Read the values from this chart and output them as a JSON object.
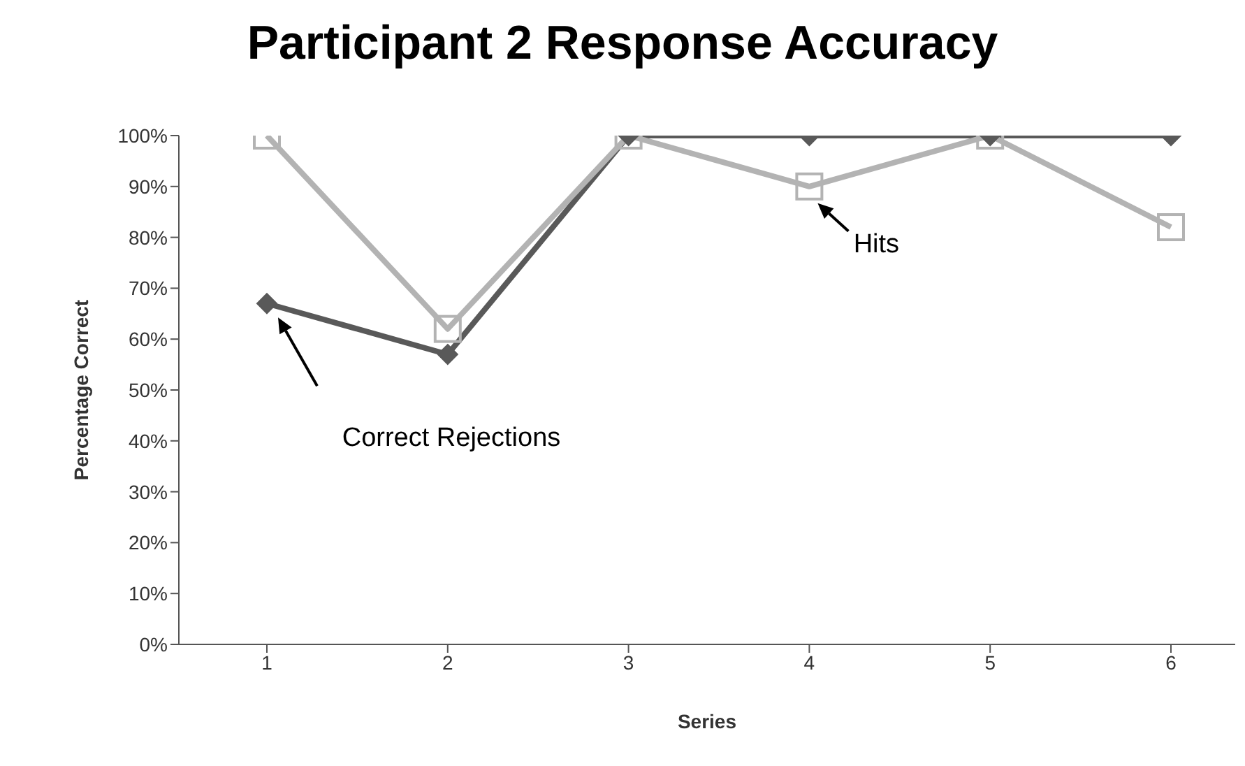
{
  "chart_data": {
    "type": "line",
    "title": "Participant 2 Response Accuracy",
    "xlabel": "Series",
    "ylabel": "Percentage Correct",
    "categories": [
      "1",
      "2",
      "3",
      "4",
      "5",
      "6"
    ],
    "series": [
      {
        "name": "Correct Rejections",
        "color": "#595959",
        "marker": "diamond",
        "values": [
          67,
          57,
          100,
          100,
          100,
          100
        ]
      },
      {
        "name": "Hits",
        "color": "#b3b3b3",
        "marker": "square",
        "values": [
          100,
          62,
          100,
          90,
          100,
          82
        ]
      }
    ],
    "ylim": [
      0,
      100
    ],
    "yticks": [
      {
        "value": 0,
        "label": "0%"
      },
      {
        "value": 10,
        "label": "10%"
      },
      {
        "value": 20,
        "label": "20%"
      },
      {
        "value": 30,
        "label": "30%"
      },
      {
        "value": 40,
        "label": "40%"
      },
      {
        "value": 50,
        "label": "50%"
      },
      {
        "value": 60,
        "label": "60%"
      },
      {
        "value": 70,
        "label": "70%"
      },
      {
        "value": 80,
        "label": "80%"
      },
      {
        "value": 90,
        "label": "90%"
      },
      {
        "value": 100,
        "label": "100%"
      }
    ],
    "grid": false,
    "legend": false
  }
}
